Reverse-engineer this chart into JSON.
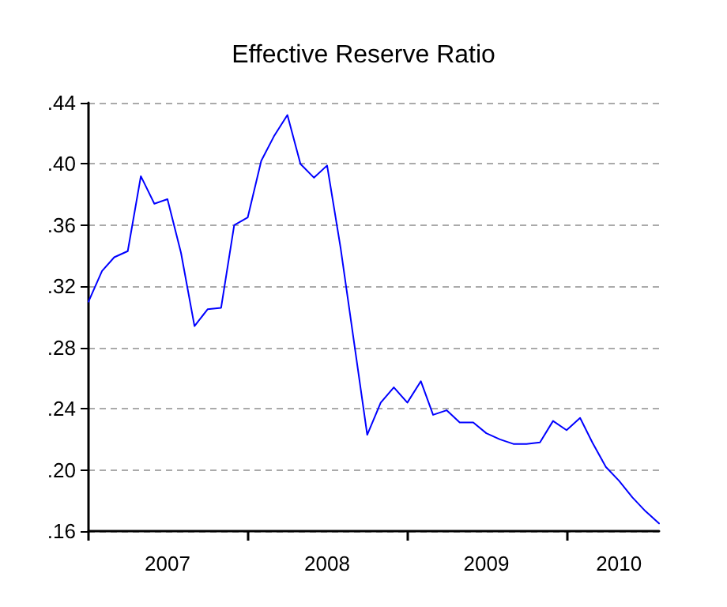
{
  "chart_data": {
    "type": "line",
    "title": "Effective Reserve Ratio",
    "x": [
      "2007-01",
      "2007-02",
      "2007-03",
      "2007-04",
      "2007-05",
      "2007-06",
      "2007-07",
      "2007-08",
      "2007-09",
      "2007-10",
      "2007-11",
      "2007-12",
      "2008-01",
      "2008-02",
      "2008-03",
      "2008-04",
      "2008-05",
      "2008-06",
      "2008-07",
      "2008-08",
      "2008-09",
      "2008-10",
      "2008-11",
      "2008-12",
      "2009-01",
      "2009-02",
      "2009-03",
      "2009-04",
      "2009-05",
      "2009-06",
      "2009-07",
      "2009-08",
      "2009-09",
      "2009-10",
      "2009-11",
      "2009-12",
      "2010-01",
      "2010-02",
      "2010-03",
      "2010-04",
      "2010-05",
      "2010-06",
      "2010-07",
      "2010-08"
    ],
    "series": [
      {
        "color": "#0000ff",
        "values": [
          0.31,
          0.33,
          0.339,
          0.343,
          0.392,
          0.374,
          0.377,
          0.342,
          0.294,
          0.305,
          0.306,
          0.36,
          0.365,
          0.402,
          0.418,
          0.432,
          0.4,
          0.391,
          0.399,
          0.345,
          0.283,
          0.223,
          0.244,
          0.254,
          0.244,
          0.258,
          0.236,
          0.239,
          0.231,
          0.231,
          0.224,
          0.22,
          0.217,
          0.217,
          0.218,
          0.232,
          0.226,
          0.234,
          0.218,
          0.202,
          0.193,
          0.182,
          0.173,
          0.165
        ]
      }
    ],
    "xlim": [
      "2007-01",
      "2010-08"
    ],
    "xticks": [
      {
        "value": "2007-01",
        "label": null
      },
      {
        "value": "2007-07",
        "label": "2007"
      },
      {
        "value": "2008-01",
        "label": null
      },
      {
        "value": "2008-07",
        "label": "2008"
      },
      {
        "value": "2009-01",
        "label": null
      },
      {
        "value": "2009-07",
        "label": "2009"
      },
      {
        "value": "2010-01",
        "label": null
      },
      {
        "value": "2010-05",
        "label": "2010"
      }
    ],
    "ylim": [
      0.16,
      0.44
    ],
    "yticks": [
      {
        "value": 0.16,
        "label": ".16"
      },
      {
        "value": 0.2,
        "label": ".20"
      },
      {
        "value": 0.24,
        "label": ".24"
      },
      {
        "value": 0.28,
        "label": ".28"
      },
      {
        "value": 0.32,
        "label": ".32"
      },
      {
        "value": 0.36,
        "label": ".36"
      },
      {
        "value": 0.4,
        "label": ".40"
      },
      {
        "value": 0.44,
        "label": ".44"
      }
    ],
    "grid": "y",
    "marker": "none",
    "line_style": "solid"
  }
}
